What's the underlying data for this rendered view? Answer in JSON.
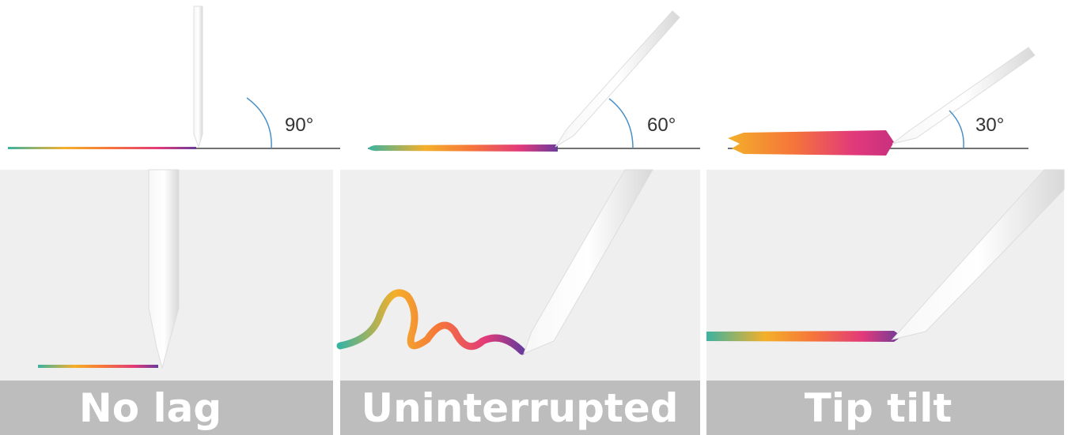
{
  "panels": [
    {
      "angle": "90°",
      "caption": "No lag"
    },
    {
      "angle": "60°",
      "caption": "Uninterrupted"
    },
    {
      "angle": "30°",
      "caption": "Tip tilt"
    }
  ]
}
